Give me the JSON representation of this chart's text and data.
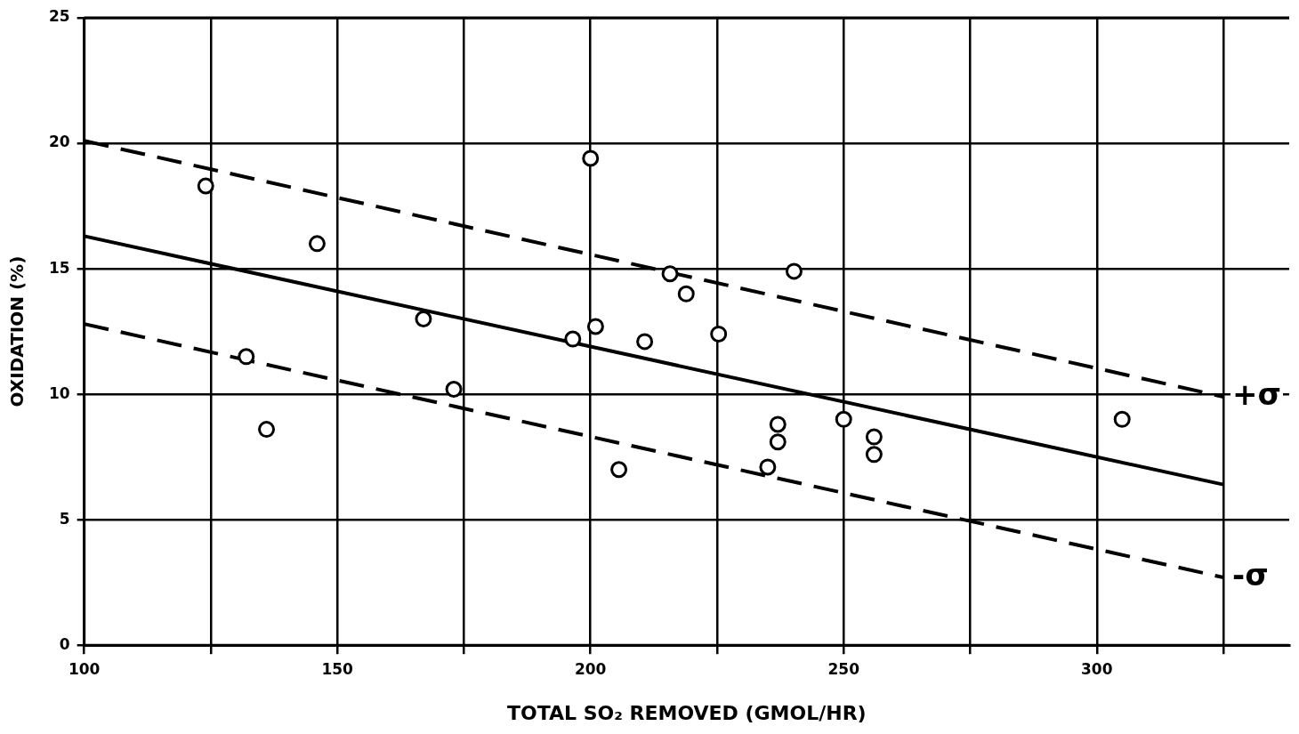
{
  "chart_data": {
    "type": "scatter",
    "xlabel": "TOTAL SO₂ REMOVED (GMOL/HR)",
    "ylabel": "OXIDATION (%)",
    "xlim": [
      100,
      338
    ],
    "xticks": [
      100,
      {
        "value": 125,
        "label": null
      },
      150,
      {
        "value": 175,
        "label": null
      },
      200,
      {
        "value": 225,
        "label": null
      },
      250,
      {
        "value": 275,
        "label": null
      },
      300,
      {
        "value": 325,
        "label": null
      }
    ],
    "ylim": [
      0,
      25
    ],
    "yticks": [
      0,
      5,
      10,
      15,
      20,
      25
    ],
    "grid": true,
    "legend": false,
    "series": [
      {
        "type": "scatter",
        "color": "#000000",
        "marker": "circle",
        "x": [
          124,
          132,
          136,
          146,
          167,
          173,
          196.5,
          200,
          201,
          205.6,
          210.7,
          215.7,
          218.9,
          225.3,
          235,
          237,
          237,
          240.2,
          250,
          256,
          256,
          305
        ],
        "values": [
          18.3,
          11.5,
          8.6,
          16.0,
          13.0,
          10.2,
          12.2,
          19.4,
          12.7,
          7.0,
          12.1,
          14.8,
          14.0,
          12.4,
          7.1,
          8.8,
          8.1,
          14.9,
          9.0,
          8.3,
          7.6,
          9.0
        ]
      },
      {
        "type": "line",
        "color": "#000000",
        "line_style": "solid",
        "x": [
          100,
          325
        ],
        "values": [
          16.3,
          6.4
        ]
      },
      {
        "type": "line",
        "color": "#000000",
        "line_style": "dashed",
        "x": [
          100,
          325
        ],
        "values": [
          20.1,
          9.9
        ]
      },
      {
        "type": "line",
        "color": "#000000",
        "line_style": "dashed",
        "x": [
          100,
          325
        ],
        "values": [
          12.8,
          2.7
        ]
      }
    ],
    "annotations": [
      {
        "text": "+σ",
        "x": 325,
        "y": 9.9
      },
      {
        "text": "-σ",
        "x": 325,
        "y": 2.7
      }
    ]
  }
}
